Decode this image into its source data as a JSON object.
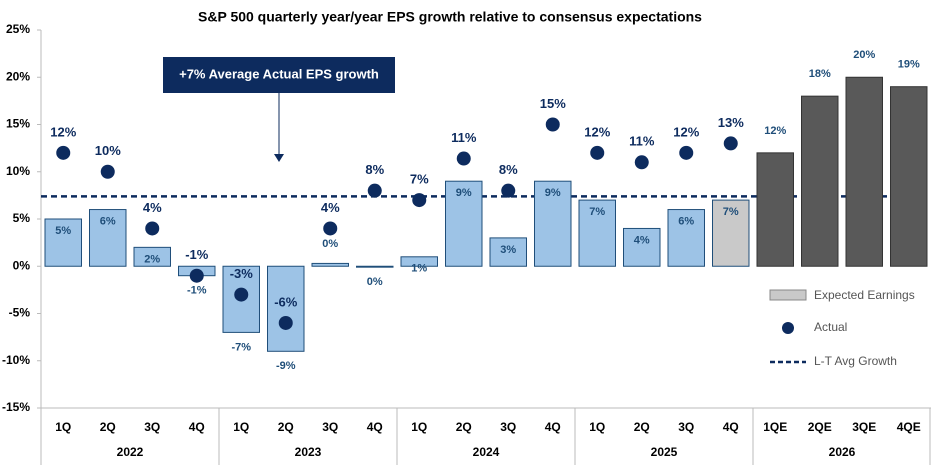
{
  "chart_data": {
    "type": "bar",
    "title": "S&P 500 quarterly year/year EPS growth relative to consensus expectations",
    "categories": [
      "1Q",
      "2Q",
      "3Q",
      "4Q",
      "1Q",
      "2Q",
      "3Q",
      "4Q",
      "1Q",
      "2Q",
      "3Q",
      "4Q",
      "1Q",
      "2Q",
      "3Q",
      "4Q",
      "1QE",
      "2QE",
      "3QE",
      "4QE"
    ],
    "x_groups": [
      "2022",
      "2023",
      "2024",
      "2025",
      "2026"
    ],
    "series": [
      {
        "name": "Expected Earnings",
        "type": "bar",
        "color": "#c9c9c9",
        "colors": [
          "#9dc3e6",
          "#9dc3e6",
          "#9dc3e6",
          "#9dc3e6",
          "#9dc3e6",
          "#9dc3e6",
          "#9dc3e6",
          "#9dc3e6",
          "#9dc3e6",
          "#9dc3e6",
          "#9dc3e6",
          "#9dc3e6",
          "#9dc3e6",
          "#9dc3e6",
          "#9dc3e6",
          "#c9c9c9",
          "#595959",
          "#595959",
          "#595959",
          "#595959"
        ],
        "values": [
          5,
          6,
          2,
          -1,
          -7,
          -9,
          0.3,
          -0.1,
          1,
          9,
          3,
          9,
          7,
          4,
          6,
          7,
          12,
          18,
          20,
          19
        ],
        "value_labels": [
          "5%",
          "6%",
          "2%",
          "-1%",
          "-7%",
          "-9%",
          "0%",
          "0%",
          "1%",
          "9%",
          "3%",
          "9%",
          "7%",
          "4%",
          "6%",
          "7%",
          "12%",
          "18%",
          "20%",
          "19%"
        ]
      },
      {
        "name": "Actual",
        "type": "scatter",
        "color": "#0d2b5e",
        "values": [
          12,
          10,
          4,
          -1,
          -3,
          -6,
          4,
          8,
          7,
          11.4,
          8,
          15,
          12,
          11,
          12,
          13,
          null,
          null,
          null,
          null
        ],
        "value_labels": [
          "12%",
          "10%",
          "4%",
          "-1%",
          "-3%",
          "-6%",
          "4%",
          "8%",
          "7%",
          "11%",
          "8%",
          "15%",
          "12%",
          "11%",
          "12%",
          "13%",
          null,
          null,
          null,
          null
        ]
      }
    ],
    "reference_line": {
      "name": "L-T Avg Growth",
      "value": 7.4,
      "color": "#0d2b5e"
    },
    "annotation": {
      "text": "+7% Average Actual EPS growth",
      "color": "#0d2b5e"
    },
    "ylim": [
      -15,
      25
    ],
    "yticks": [
      {
        "value": -15,
        "label": "-15%"
      },
      {
        "value": -10,
        "label": "-10%"
      },
      {
        "value": -5,
        "label": "-5%"
      },
      {
        "value": 0,
        "label": "0%"
      },
      {
        "value": 5,
        "label": "5%"
      },
      {
        "value": 10,
        "label": "10%"
      },
      {
        "value": 15,
        "label": "15%"
      },
      {
        "value": 20,
        "label": "20%"
      },
      {
        "value": 25,
        "label": "25%"
      }
    ],
    "grid": false
  }
}
